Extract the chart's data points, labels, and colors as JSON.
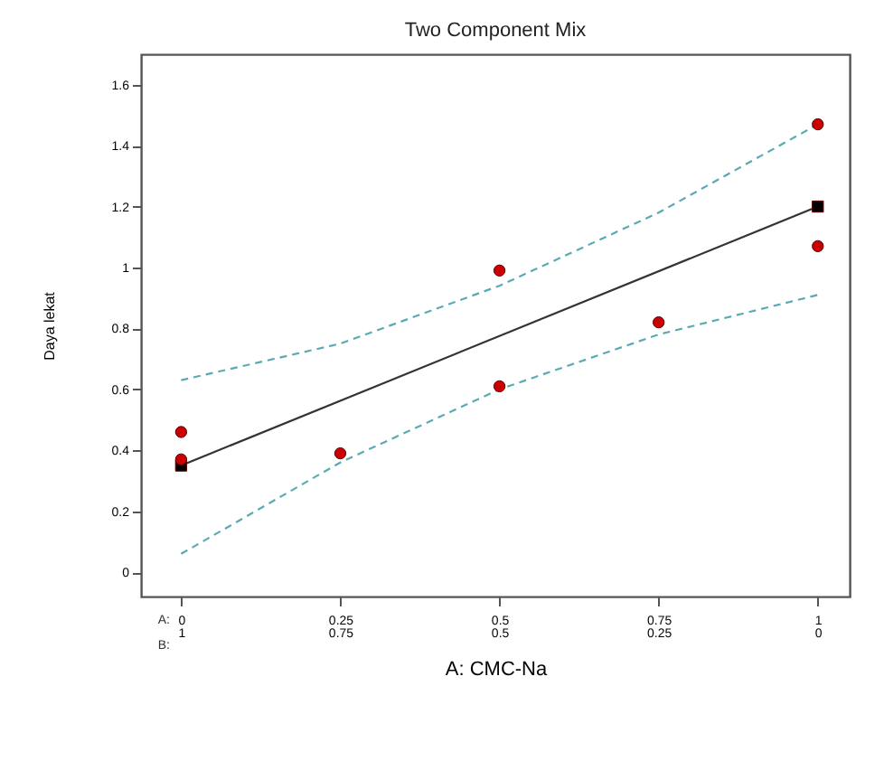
{
  "chart_data": {
    "type": "scatter",
    "title": "Two Component Mix",
    "xlabel": "A: CMC-Na",
    "ylabel": "Daya lekat",
    "annotations": [
      "A:",
      "B:"
    ],
    "xlim": [
      -0.063,
      1.05
    ],
    "xticks": [
      0,
      0.25,
      0.5,
      0.75,
      1
    ],
    "x2lim": [
      1.063,
      -0.05
    ],
    "x2ticks": [
      1,
      0.75,
      0.5,
      0.25,
      0
    ],
    "ylim": [
      -0.08,
      1.7
    ],
    "yticks": [
      0,
      0.2,
      0.4,
      0.6,
      0.8,
      1,
      1.2,
      1.4,
      1.6
    ],
    "grid": false,
    "series": [
      {
        "type": "line",
        "color": "#5aaab4",
        "line_style": "dashed",
        "marker": "none",
        "x": [
          0,
          0.25,
          0.5,
          0.75,
          1
        ],
        "values": [
          0.63,
          0.75,
          0.94,
          1.18,
          1.47
        ]
      },
      {
        "type": "line",
        "color": "#5aaab4",
        "line_style": "dashed",
        "marker": "none",
        "x": [
          0,
          0.25,
          0.5,
          0.75,
          1
        ],
        "values": [
          0.06,
          0.36,
          0.6,
          0.78,
          0.91
        ]
      },
      {
        "type": "line",
        "color": "#333333",
        "line_style": "solid",
        "marker": "none",
        "x": [
          0,
          1
        ],
        "values": [
          0.35,
          1.2
        ]
      },
      {
        "type": "scatter",
        "color": "#000000",
        "marker": "square",
        "x": [
          0,
          1
        ],
        "values": [
          0.35,
          1.2
        ]
      },
      {
        "type": "scatter",
        "color": "#cc0000",
        "marker": "circle",
        "x": [
          0,
          0,
          0.25,
          0.5,
          0.5,
          0.75,
          1,
          1
        ],
        "values": [
          0.46,
          0.37,
          0.39,
          0.99,
          0.61,
          0.82,
          1.47,
          1.07
        ]
      }
    ]
  }
}
